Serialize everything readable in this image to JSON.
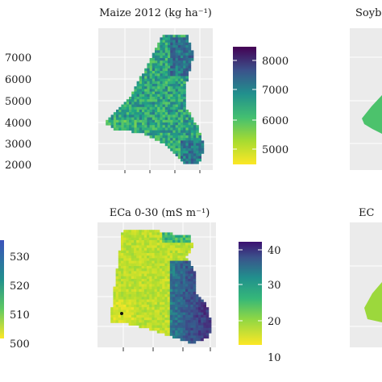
{
  "chart_data": [
    {
      "type": "heatmap",
      "title": "Maize 2012 (kg ha⁻¹)",
      "legend": {
        "ticks": [
          "8000",
          "7000",
          "6000",
          "5000"
        ],
        "min": 4500,
        "max": 8500,
        "placement": "right"
      },
      "ylim": [
        1700,
        7600
      ],
      "row_labels": [
        "7000",
        "6000",
        "5000",
        "4000",
        "3000",
        "2000"
      ],
      "grid": true
    },
    {
      "type": "heatmap",
      "title": "ECa 0-30 (mS m⁻¹)",
      "legend": {
        "ticks": [
          "40",
          "30",
          "20",
          "10"
        ],
        "min": 8,
        "max": 42,
        "placement": "right"
      },
      "grid": true
    },
    {
      "type": "heatmap",
      "title": "Soybe",
      "partial": true
    },
    {
      "type": "heatmap",
      "title": "EC",
      "partial": true
    },
    {
      "type": "colorbar",
      "partial": true,
      "legend": {
        "ticks": [
          "530",
          "520",
          "510",
          "500"
        ]
      }
    }
  ],
  "colors": {
    "panel_bg": "#ebebeb",
    "grid_line": "#ffffff",
    "scale": [
      "#fde725",
      "#b0dd2f",
      "#5ec962",
      "#21a585",
      "#2c728e",
      "#3b528b",
      "#472d7b",
      "#440154"
    ]
  }
}
